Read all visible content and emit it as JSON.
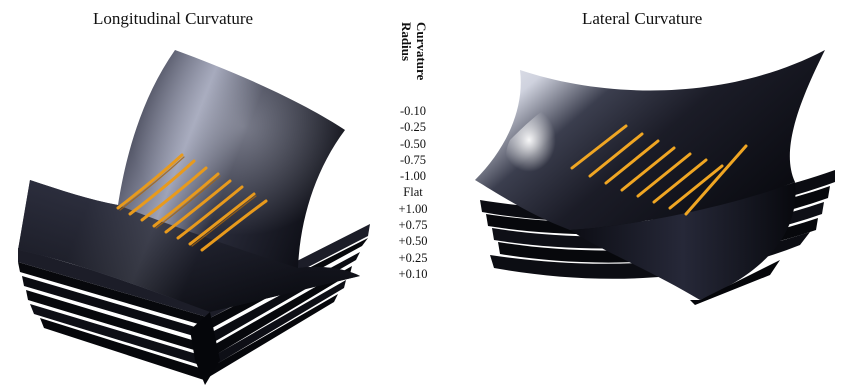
{
  "titles": {
    "left": "Longitudinal Curvature",
    "right": "Lateral Curvature"
  },
  "scale": {
    "heading_line1": "Curvature",
    "heading_line2": "Radius",
    "values": [
      "-0.10",
      "-0.25",
      "-0.50",
      "-0.75",
      "-1.00",
      "Flat",
      "+1.00",
      "+0.75",
      "+0.50",
      "+0.25",
      "+0.10"
    ]
  },
  "colors": {
    "surface_dark": "#0d0e16",
    "surface_mid": "#2a2c3a",
    "highlight": "#e8eaf2",
    "rib": "#e89a1c"
  }
}
